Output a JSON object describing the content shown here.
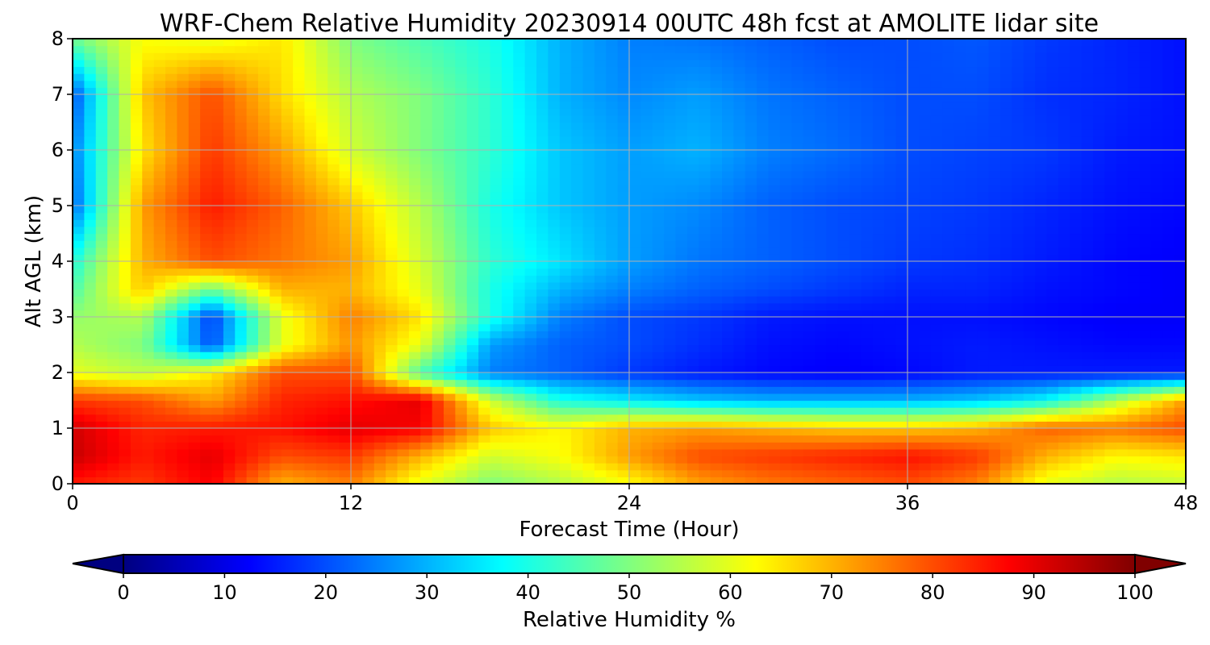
{
  "chart_data": {
    "type": "heatmap",
    "title": "WRF-Chem Relative Humidity 20230914 00UTC 48h fcst at AMOLITE lidar site",
    "xlabel": "Forecast Time (Hour)",
    "ylabel": "Alt AGL (km)",
    "xlim": [
      0,
      48
    ],
    "ylim": [
      0,
      8
    ],
    "x_ticks": [
      0,
      12,
      24,
      36,
      48
    ],
    "y_ticks": [
      0,
      1,
      2,
      3,
      4,
      5,
      6,
      7,
      8
    ],
    "grid": true,
    "colormap": "jet",
    "colorbar": {
      "label": "Relative Humidity %",
      "range": [
        0,
        100
      ],
      "ticks": [
        0,
        10,
        20,
        30,
        40,
        50,
        60,
        70,
        80,
        90,
        100
      ],
      "orientation": "horizontal",
      "extend": "both",
      "placement": "bottom"
    },
    "x": [
      0,
      3,
      6,
      9,
      12,
      15,
      18,
      21,
      24,
      27,
      30,
      33,
      36,
      39,
      42,
      45,
      48
    ],
    "y": [
      0,
      0.5,
      1,
      1.5,
      2,
      2.5,
      3,
      3.5,
      4,
      5,
      6,
      7,
      8
    ],
    "values": [
      [
        85,
        82,
        88,
        70,
        75,
        60,
        50,
        55,
        62,
        72,
        76,
        78,
        80,
        75,
        60,
        55,
        57
      ],
      [
        93,
        85,
        90,
        80,
        82,
        70,
        58,
        62,
        72,
        80,
        82,
        84,
        86,
        82,
        70,
        63,
        65
      ],
      [
        92,
        84,
        85,
        86,
        90,
        88,
        68,
        63,
        70,
        72,
        70,
        68,
        68,
        70,
        78,
        76,
        80
      ],
      [
        82,
        80,
        72,
        84,
        86,
        90,
        58,
        40,
        36,
        32,
        30,
        30,
        30,
        32,
        38,
        55,
        72
      ],
      [
        60,
        56,
        64,
        80,
        80,
        45,
        25,
        22,
        18,
        15,
        13,
        12,
        13,
        15,
        15,
        15,
        15
      ],
      [
        55,
        50,
        20,
        60,
        73,
        60,
        28,
        22,
        20,
        17,
        14,
        13,
        14,
        15,
        14,
        13,
        13
      ],
      [
        52,
        55,
        18,
        60,
        75,
        65,
        40,
        25,
        20,
        18,
        15,
        14,
        14,
        14,
        13,
        12,
        12
      ],
      [
        45,
        68,
        48,
        70,
        70,
        60,
        40,
        30,
        25,
        22,
        20,
        18,
        16,
        16,
        14,
        13,
        12
      ],
      [
        40,
        70,
        80,
        76,
        72,
        58,
        42,
        35,
        28,
        24,
        22,
        20,
        18,
        17,
        15,
        13,
        12
      ],
      [
        22,
        72,
        85,
        78,
        68,
        55,
        40,
        32,
        28,
        26,
        22,
        20,
        19,
        18,
        16,
        14,
        13
      ],
      [
        25,
        65,
        82,
        72,
        58,
        50,
        42,
        32,
        28,
        30,
        25,
        23,
        20,
        19,
        18,
        15,
        14
      ],
      [
        20,
        68,
        80,
        66,
        55,
        50,
        42,
        30,
        26,
        28,
        24,
        22,
        20,
        20,
        17,
        16,
        14
      ],
      [
        48,
        62,
        60,
        65,
        50,
        45,
        40,
        30,
        25,
        24,
        22,
        20,
        20,
        21,
        18,
        16,
        14
      ]
    ]
  }
}
